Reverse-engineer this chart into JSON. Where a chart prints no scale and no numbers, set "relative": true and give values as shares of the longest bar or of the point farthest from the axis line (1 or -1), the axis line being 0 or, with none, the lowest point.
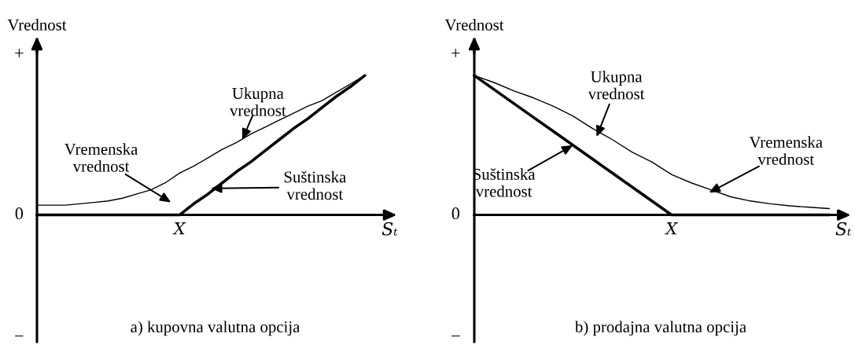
{
  "chart_data": [
    {
      "type": "line",
      "title": "a) kupovna valutna opcija",
      "ylabel": "Vrednost",
      "xlabel": "Sₜ",
      "relative": true,
      "legend": false,
      "marker": "none",
      "line_style": "solid",
      "categories": [
        null,
        null,
        null,
        null,
        null,
        null,
        null,
        null,
        null,
        null,
        null,
        null,
        null,
        null,
        null,
        null,
        null,
        null,
        null,
        null,
        null,
        null,
        null,
        null
      ],
      "series": [
        {
          "color": "#000000",
          "values": [
            0.07,
            0.07,
            0.07,
            0.08,
            0.09,
            0.1,
            0.12,
            0.15,
            0.18,
            0.23,
            0.3,
            0.35,
            0.41,
            0.47,
            0.52,
            0.58,
            0.63,
            0.68,
            0.73,
            0.78,
            0.82,
            0.88,
            0.94,
            1.0
          ]
        },
        {
          "color": "#000000",
          "values": [
            0,
            0,
            0,
            0,
            0,
            0,
            0,
            0,
            0,
            0,
            0,
            0.08,
            0.15,
            0.23,
            0.31,
            0.38,
            0.46,
            0.54,
            0.62,
            0.69,
            0.77,
            0.85,
            0.92,
            1.0
          ]
        }
      ],
      "annotations": [
        "+",
        "0",
        "−",
        "X",
        "Ukupna\nvrednost",
        "Vremenska\nvrednost",
        "Suštinska\nvrednost"
      ]
    },
    {
      "type": "line",
      "title": "b) prodajna valutna opcija",
      "ylabel": "Vrednost",
      "xlabel": "Sₜ",
      "relative": true,
      "legend": false,
      "marker": "none",
      "line_style": "solid",
      "categories": [
        null,
        null,
        null,
        null,
        null,
        null,
        null,
        null,
        null,
        null,
        null,
        null,
        null,
        null,
        null,
        null,
        null,
        null,
        null
      ],
      "series": [
        {
          "color": "#000000",
          "values": [
            1.0,
            0.95,
            0.89,
            0.84,
            0.78,
            0.71,
            0.62,
            0.54,
            0.45,
            0.38,
            0.29,
            0.23,
            0.18,
            0.13,
            0.1,
            0.08,
            0.065,
            0.055,
            0.045
          ]
        },
        {
          "color": "#000000",
          "values": [
            1.0,
            0.9,
            0.8,
            0.7,
            0.6,
            0.5,
            0.4,
            0.3,
            0.2,
            0.1,
            0,
            0,
            0,
            0,
            0,
            0,
            0,
            0,
            0
          ]
        }
      ],
      "annotations": [
        "+",
        "0",
        "−",
        "X",
        "Ukupna\nvrednost",
        "Suštinska\nvrednost",
        "Vremenska\nvrednost"
      ]
    }
  ]
}
